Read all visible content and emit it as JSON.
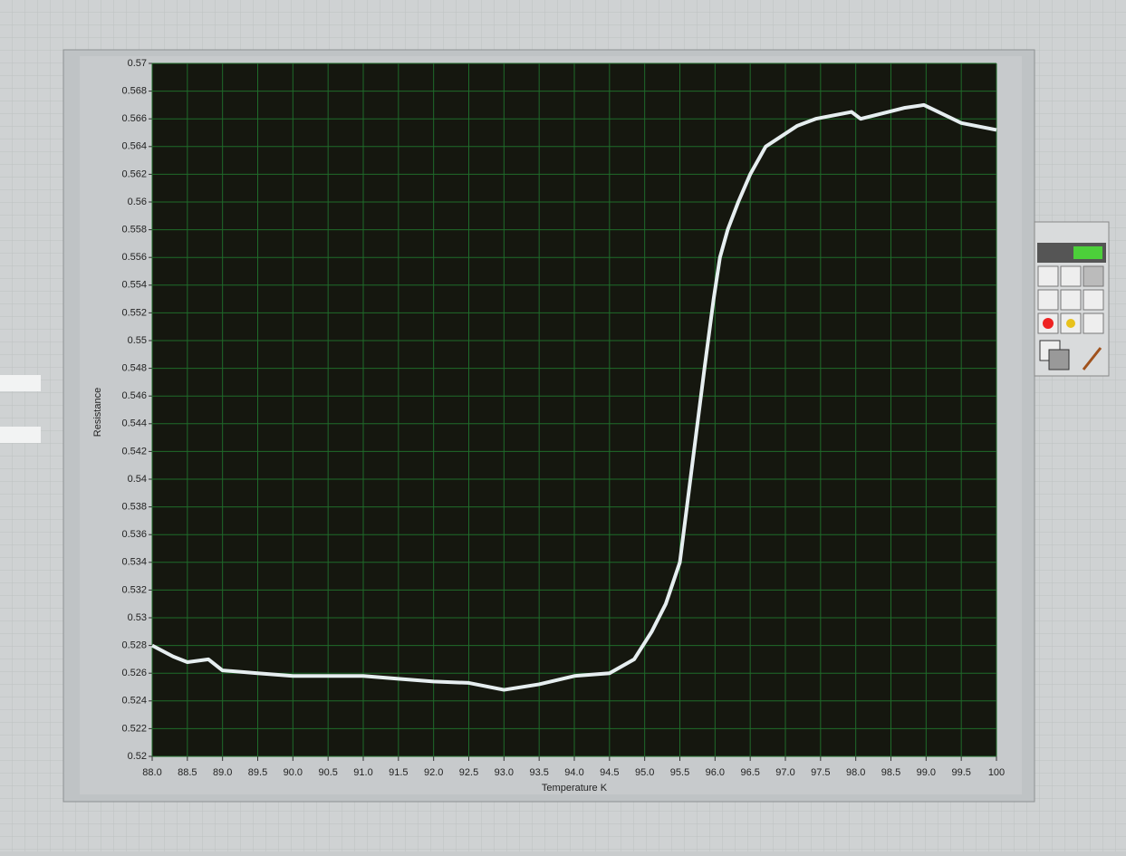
{
  "chart_data": {
    "type": "line",
    "ylabel": "Resistance",
    "xlabel": "Temperature K",
    "x": [
      88.0,
      88.3,
      88.5,
      88.8,
      89.0,
      89.5,
      90.0,
      90.5,
      91.0,
      91.5,
      92.0,
      92.5,
      93.0,
      93.5,
      94.0,
      94.5,
      94.85,
      95.1,
      95.3,
      95.5,
      95.6,
      95.7,
      95.85,
      95.98,
      96.07,
      96.18,
      96.33,
      96.5,
      96.72,
      97.17,
      97.43,
      97.94,
      98.07,
      98.7,
      98.97,
      99.5,
      100
    ],
    "series": [
      {
        "color": "#e6eef0",
        "values": [
          0.528,
          0.5272,
          0.5268,
          0.527,
          0.5262,
          0.526,
          0.5258,
          0.5258,
          0.5258,
          0.5256,
          0.5254,
          0.5253,
          0.5248,
          0.5252,
          0.5258,
          0.526,
          0.527,
          0.529,
          0.531,
          0.534,
          0.538,
          0.542,
          0.548,
          0.553,
          0.556,
          0.558,
          0.56,
          0.562,
          0.564,
          0.5655,
          0.566,
          0.5665,
          0.566,
          0.5668,
          0.567,
          0.5657,
          0.5652
        ]
      }
    ],
    "xlim": [
      88,
      100
    ],
    "xticks": [
      {
        "value": 88,
        "label": "88.0"
      },
      {
        "value": 88.5,
        "label": "88.5"
      },
      {
        "value": 89,
        "label": "89.0"
      },
      {
        "value": 89.5,
        "label": "89.5"
      },
      {
        "value": 90,
        "label": "90.0"
      },
      {
        "value": 90.5,
        "label": "90.5"
      },
      {
        "value": 91,
        "label": "91.0"
      },
      {
        "value": 91.5,
        "label": "91.5"
      },
      {
        "value": 92,
        "label": "92.0"
      },
      {
        "value": 92.5,
        "label": "92.5"
      },
      {
        "value": 93,
        "label": "93.0"
      },
      {
        "value": 93.5,
        "label": "93.5"
      },
      {
        "value": 94,
        "label": "94.0"
      },
      {
        "value": 94.5,
        "label": "94.5"
      },
      {
        "value": 95,
        "label": "95.0"
      },
      {
        "value": 95.5,
        "label": "95.5"
      },
      {
        "value": 96,
        "label": "96.0"
      },
      {
        "value": 96.5,
        "label": "96.5"
      },
      {
        "value": 97,
        "label": "97.0"
      },
      {
        "value": 97.5,
        "label": "97.5"
      },
      {
        "value": 98,
        "label": "98.0"
      },
      {
        "value": 98.5,
        "label": "98.5"
      },
      {
        "value": 99,
        "label": "99.0"
      },
      {
        "value": 99.5,
        "label": "99.5"
      },
      100
    ],
    "ylim": [
      0.52,
      0.57
    ],
    "yticks": [
      0.52,
      0.522,
      0.524,
      0.526,
      0.528,
      0.53,
      0.532,
      0.534,
      0.536,
      0.538,
      0.54,
      0.542,
      0.544,
      0.546,
      0.548,
      0.55,
      0.552,
      0.554,
      0.556,
      0.558,
      0.56,
      0.562,
      0.564,
      0.566,
      0.568,
      0.57
    ],
    "grid": true,
    "grid_color": "#1f6b2a",
    "plot_background": "#15170f"
  }
}
